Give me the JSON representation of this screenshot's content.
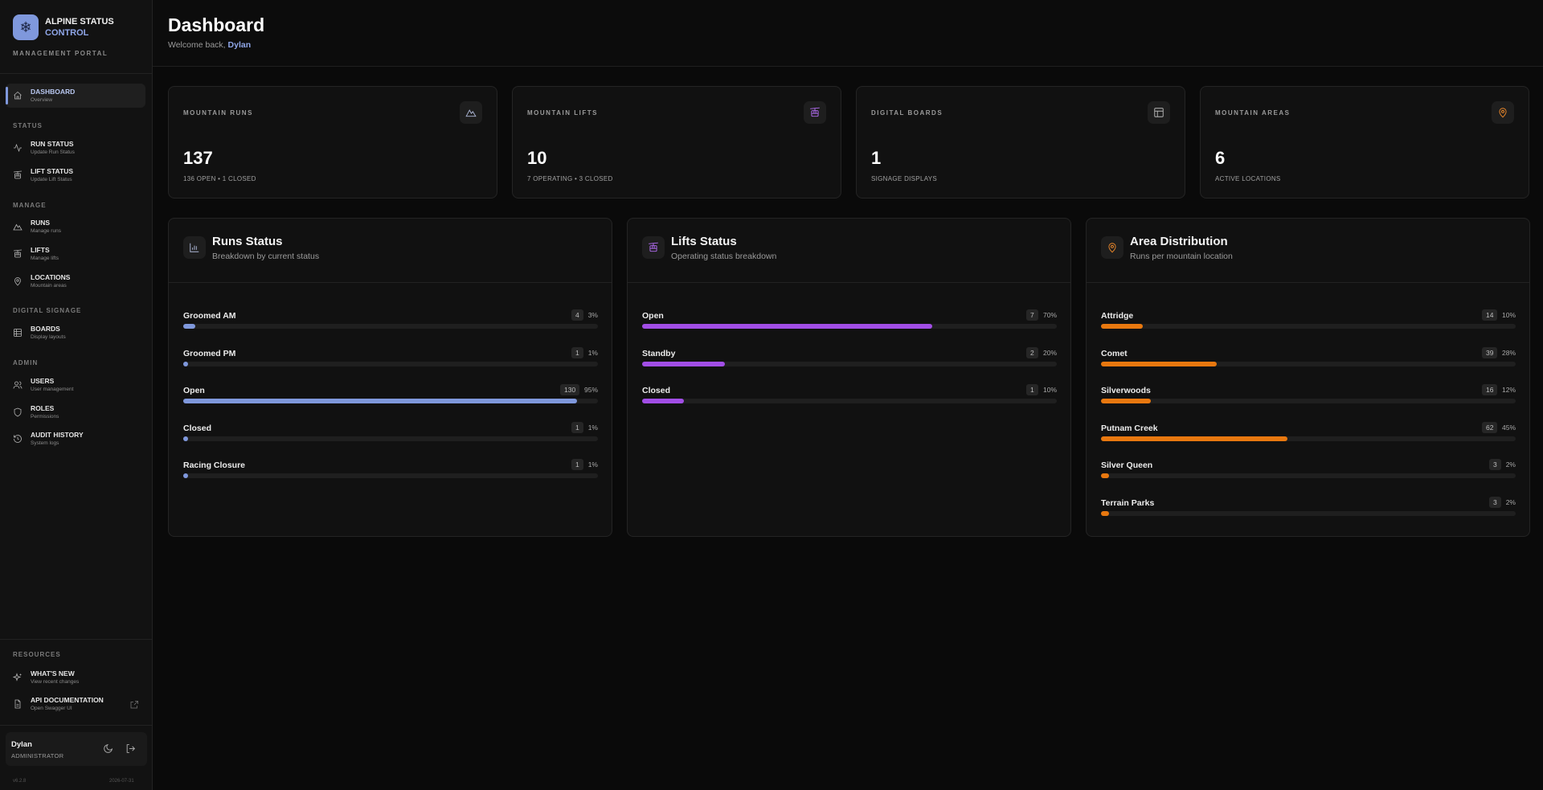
{
  "brand": {
    "line1": "ALPINE STATUS",
    "line2": "CONTROL",
    "portal": "MANAGEMENT PORTAL"
  },
  "sidebar": {
    "sections": {
      "status": "STATUS",
      "manage": "MANAGE",
      "digital": "DIGITAL SIGNAGE",
      "admin": "ADMIN",
      "resources": "RESOURCES"
    },
    "items": [
      {
        "label": "DASHBOARD",
        "sub": "Overview",
        "icon": "home-icon"
      },
      {
        "label": "RUN STATUS",
        "sub": "Update Run Status",
        "icon": "activity-icon"
      },
      {
        "label": "LIFT STATUS",
        "sub": "Update Lift Status",
        "icon": "gondola-icon"
      },
      {
        "label": "RUNS",
        "sub": "Manage runs",
        "icon": "mountain-icon"
      },
      {
        "label": "LIFTS",
        "sub": "Manage lifts",
        "icon": "gondola-icon"
      },
      {
        "label": "LOCATIONS",
        "sub": "Mountain areas",
        "icon": "map-pin-icon"
      },
      {
        "label": "BOARDS",
        "sub": "Display layouts",
        "icon": "grid-icon"
      },
      {
        "label": "USERS",
        "sub": "User management",
        "icon": "users-icon"
      },
      {
        "label": "ROLES",
        "sub": "Permissions",
        "icon": "shield-icon"
      },
      {
        "label": "AUDIT HISTORY",
        "sub": "System logs",
        "icon": "history-icon"
      },
      {
        "label": "WHAT'S NEW",
        "sub": "View recent changes",
        "icon": "sparkles-icon"
      },
      {
        "label": "API DOCUMENTATION",
        "sub": "Open Swagger UI",
        "icon": "file-icon"
      }
    ],
    "user": {
      "name": "Dylan",
      "role": "ADMINISTRATOR"
    },
    "version": "v6.2.8",
    "build_date": "2026-07-31"
  },
  "header": {
    "title": "Dashboard",
    "welcome": "Welcome back,",
    "user": "Dylan"
  },
  "stats": [
    {
      "label": "MOUNTAIN RUNS",
      "value": "137",
      "sub": "136 OPEN • 1 CLOSED",
      "icon": "mountain-icon",
      "color": "#aeb8d8"
    },
    {
      "label": "MOUNTAIN LIFTS",
      "value": "10",
      "sub": "7 OPERATING • 3 CLOSED",
      "icon": "gondola-icon",
      "color": "#b36cf2"
    },
    {
      "label": "DIGITAL BOARDS",
      "value": "1",
      "sub": "SIGNAGE DISPLAYS",
      "icon": "layout-icon",
      "color": "#b8b8b8"
    },
    {
      "label": "MOUNTAIN AREAS",
      "value": "6",
      "sub": "ACTIVE LOCATIONS",
      "icon": "map-pin-icon",
      "color": "#f08a2a"
    }
  ],
  "panels": [
    {
      "title": "Runs Status",
      "subtitle": "Breakdown by current status",
      "icon": "bar-chart-icon",
      "color": "#7f98dc",
      "rows": [
        {
          "label": "Groomed AM",
          "count": "4",
          "pct": "3%",
          "value": 0.03
        },
        {
          "label": "Groomed PM",
          "count": "1",
          "pct": "1%",
          "value": 0.01
        },
        {
          "label": "Open",
          "count": "130",
          "pct": "95%",
          "value": 0.95
        },
        {
          "label": "Closed",
          "count": "1",
          "pct": "1%",
          "value": 0.01
        },
        {
          "label": "Racing Closure",
          "count": "1",
          "pct": "1%",
          "value": 0.01
        }
      ]
    },
    {
      "title": "Lifts Status",
      "subtitle": "Operating status breakdown",
      "icon": "gondola-icon",
      "color": "#a24ee6",
      "rows": [
        {
          "label": "Open",
          "count": "7",
          "pct": "70%",
          "value": 0.7
        },
        {
          "label": "Standby",
          "count": "2",
          "pct": "20%",
          "value": 0.2
        },
        {
          "label": "Closed",
          "count": "1",
          "pct": "10%",
          "value": 0.1
        }
      ]
    },
    {
      "title": "Area Distribution",
      "subtitle": "Runs per mountain location",
      "icon": "map-pin-icon",
      "color": "#e8780f",
      "rows": [
        {
          "label": "Attridge",
          "count": "14",
          "pct": "10%",
          "value": 0.1
        },
        {
          "label": "Comet",
          "count": "39",
          "pct": "28%",
          "value": 0.28
        },
        {
          "label": "Silverwoods",
          "count": "16",
          "pct": "12%",
          "value": 0.12
        },
        {
          "label": "Putnam Creek",
          "count": "62",
          "pct": "45%",
          "value": 0.45
        },
        {
          "label": "Silver Queen",
          "count": "3",
          "pct": "2%",
          "value": 0.02
        },
        {
          "label": "Terrain Parks",
          "count": "3",
          "pct": "2%",
          "value": 0.02
        }
      ]
    }
  ]
}
